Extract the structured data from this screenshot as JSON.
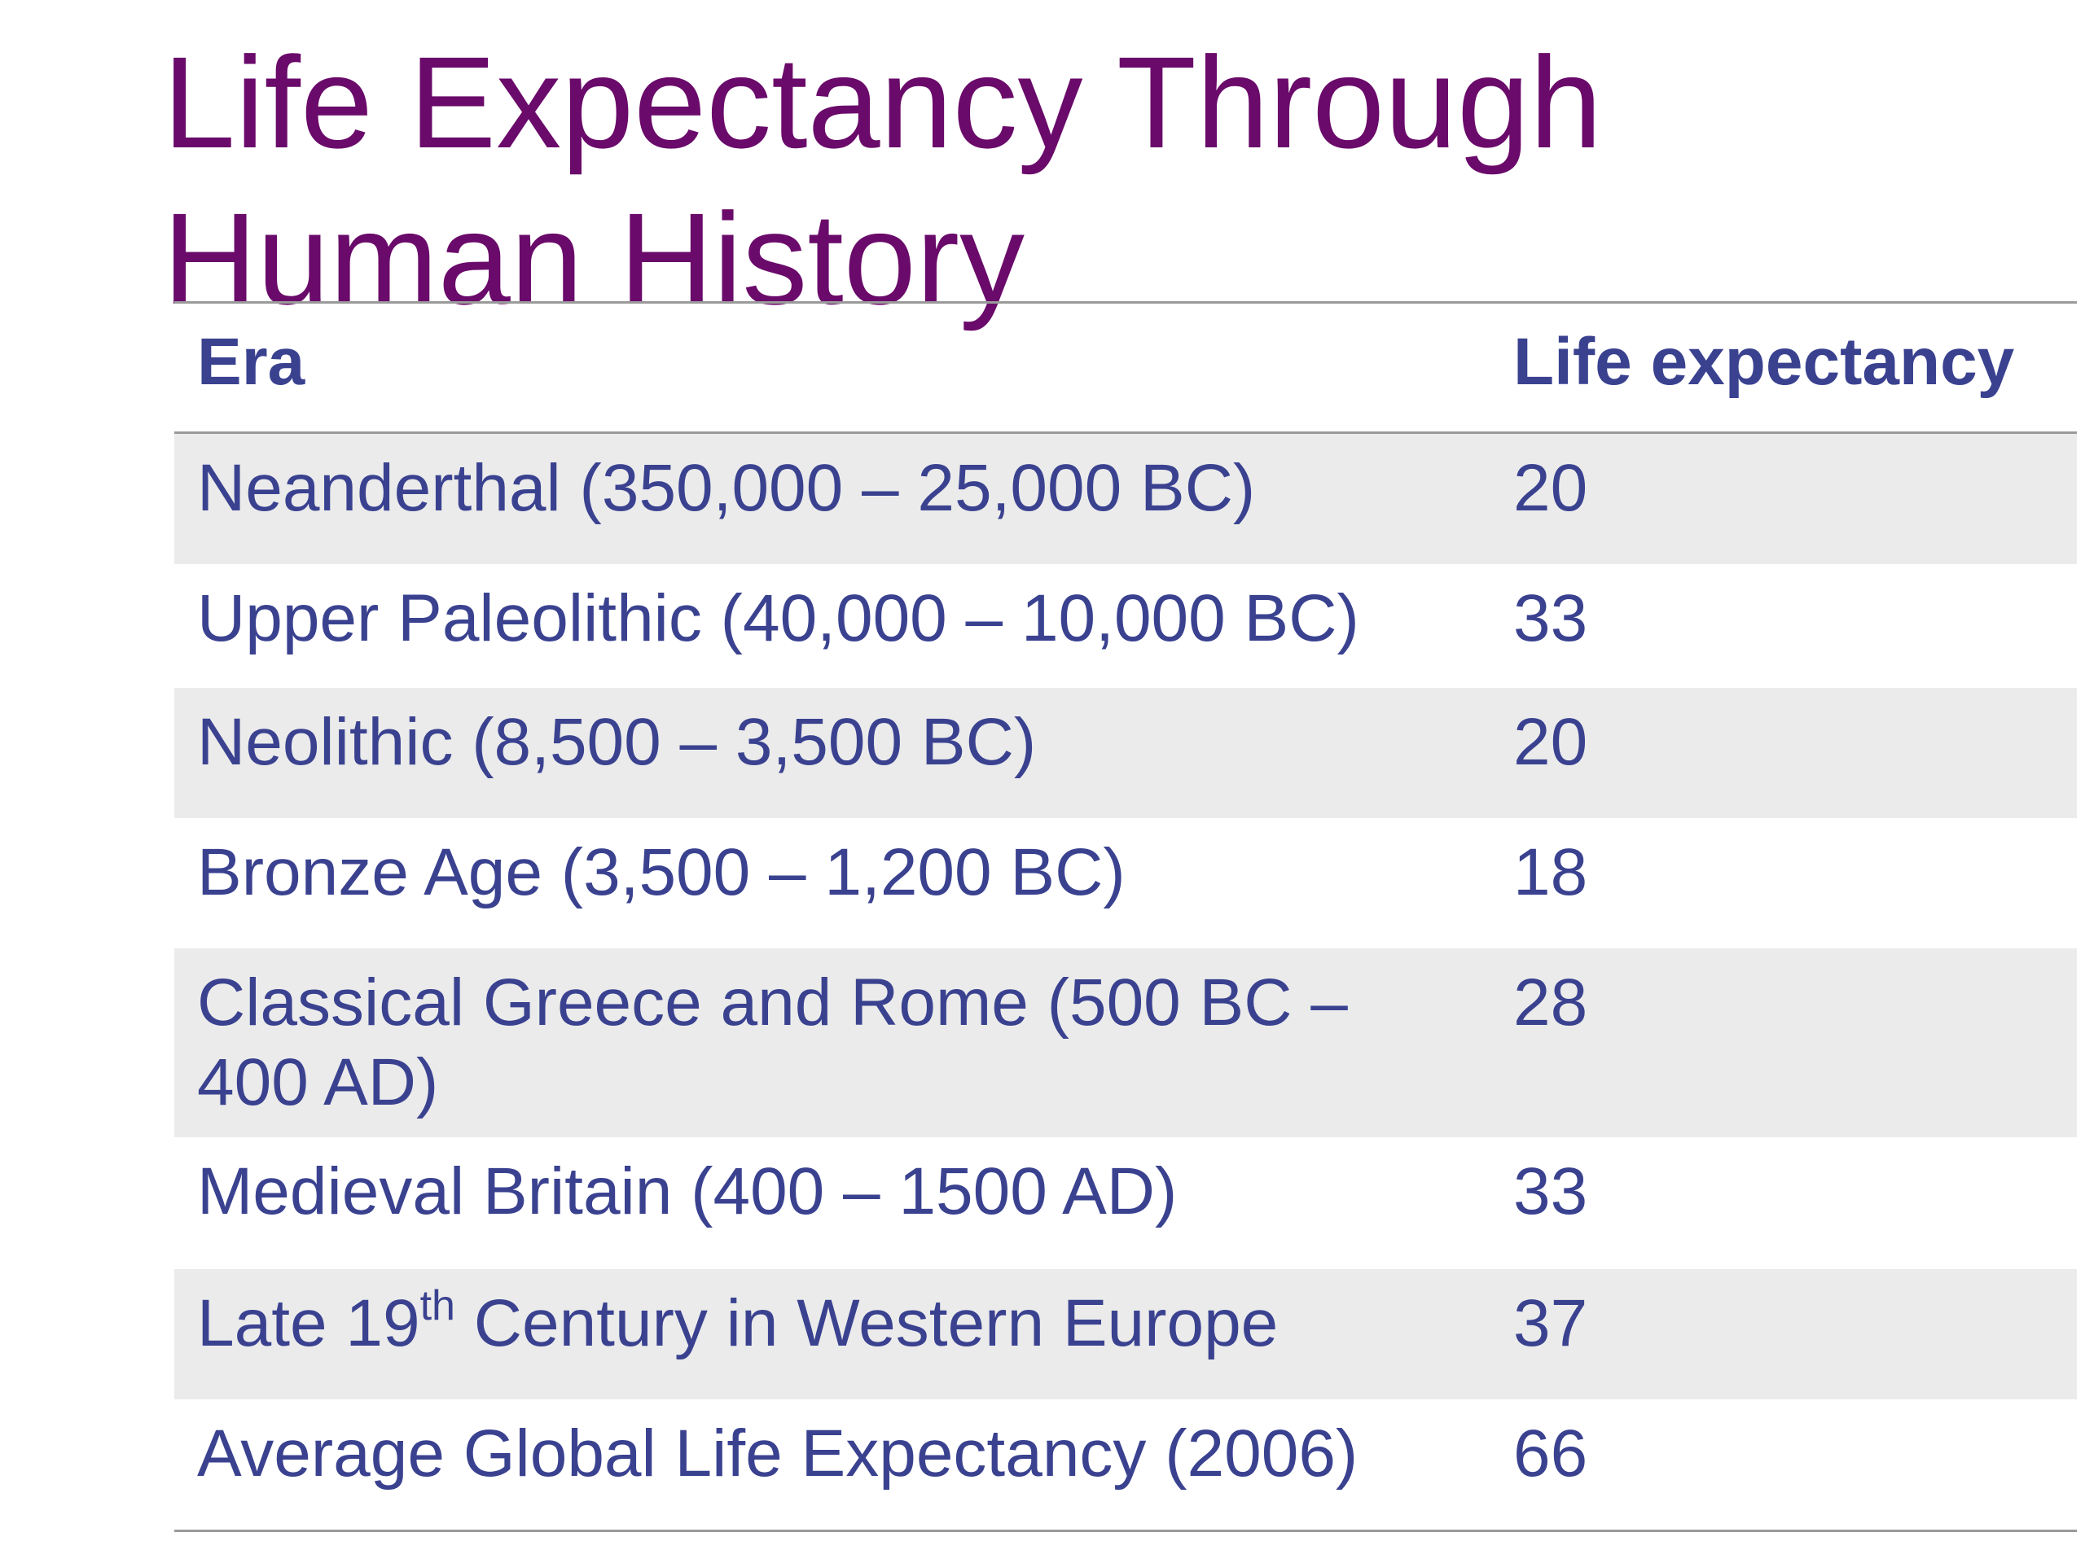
{
  "title": {
    "line1": "Life Expectancy Through",
    "line2": "Human History"
  },
  "table": {
    "headers": {
      "era": "Era",
      "life_expectancy": "Life expectancy"
    },
    "rows": [
      {
        "era": "Neanderthal (350,000 – 25,000 BC)",
        "value": "20"
      },
      {
        "era": "Upper Paleolithic (40,000 – 10,000 BC)",
        "value": "33"
      },
      {
        "era": "Neolithic (8,500 – 3,500 BC)",
        "value": "20"
      },
      {
        "era": "Bronze Age (3,500 – 1,200 BC)",
        "value": "18"
      },
      {
        "era_line1": "Classical Greece and Rome (500 BC –",
        "era_line2": "400 AD)",
        "value": "28"
      },
      {
        "era": "Medieval Britain (400 – 1500 AD)",
        "value": "33"
      },
      {
        "era_prefix": "Late 19",
        "era_sup": "th",
        "era_suffix": " Century in Western Europe",
        "value": "37"
      },
      {
        "era": "Average Global Life Expectancy (2006)",
        "value": "66"
      }
    ]
  },
  "colors": {
    "title": "#6a0a6a",
    "text": "#3a4290",
    "row_shade": "#ebebeb",
    "rule": "#9a9a9a"
  }
}
